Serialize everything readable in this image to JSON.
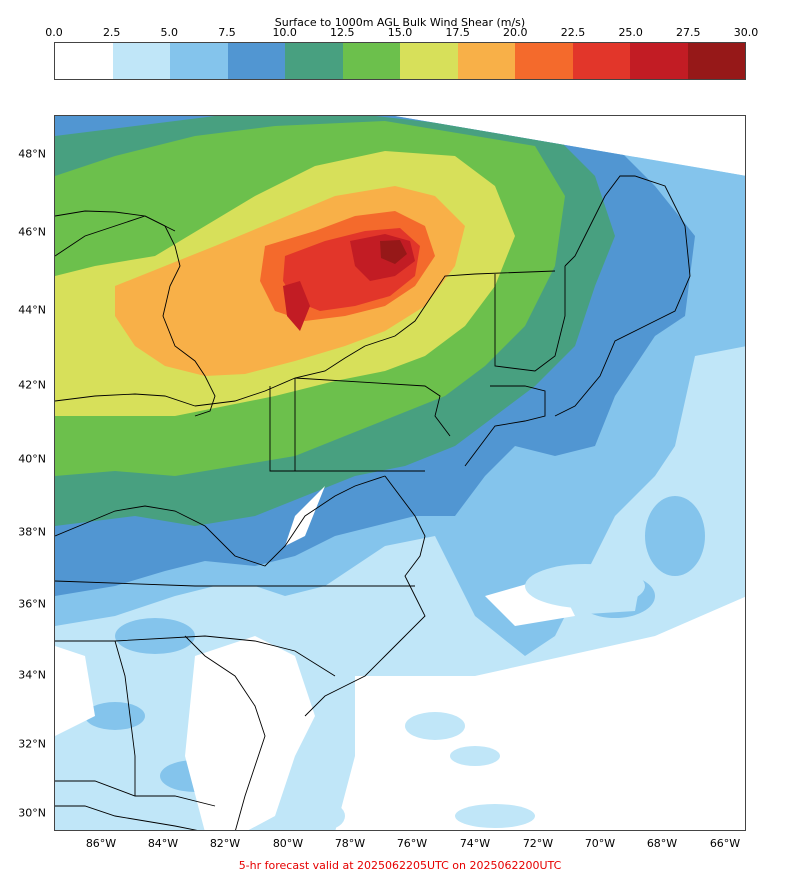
{
  "colorbar": {
    "title": "Surface to 1000m AGL Bulk Wind Shear (m/s)",
    "ticks": [
      "0.0",
      "2.5",
      "5.0",
      "7.5",
      "10.0",
      "12.5",
      "15.0",
      "17.5",
      "20.0",
      "22.5",
      "25.0",
      "27.5",
      "30.0"
    ],
    "colors": [
      "#ffffff",
      "#c0e6f8",
      "#84c4ec",
      "#5196d2",
      "#48a080",
      "#6cc04c",
      "#d7e05a",
      "#f8b048",
      "#f46a2c",
      "#e2362a",
      "#c21c24",
      "#961818"
    ]
  },
  "axes": {
    "lat_labels": [
      "48°N",
      "46°N",
      "44°N",
      "42°N",
      "40°N",
      "38°N",
      "36°N",
      "34°N",
      "32°N",
      "30°N"
    ],
    "lon_labels": [
      "86°W",
      "84°W",
      "82°W",
      "80°W",
      "78°W",
      "76°W",
      "74°W",
      "72°W",
      "70°W",
      "68°W",
      "66°W"
    ]
  },
  "footer": {
    "text": "5-hr forecast valid at 2025062205UTC on 2025062200UTC"
  }
}
